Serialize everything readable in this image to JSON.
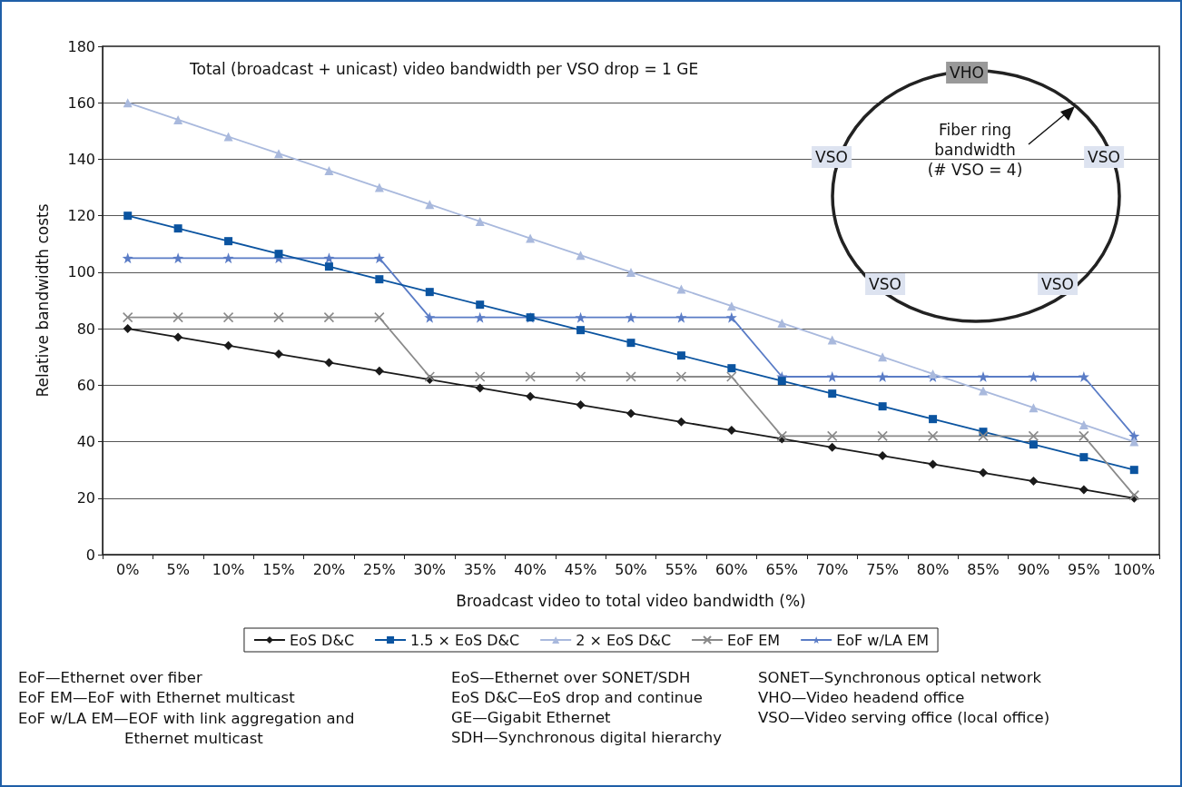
{
  "chart_data": {
    "type": "line",
    "xlabel": "Broadcast video to total video bandwidth (%)",
    "ylabel": "Relative bandwidth costs",
    "categories": [
      "0%",
      "5%",
      "10%",
      "15%",
      "20%",
      "25%",
      "30%",
      "35%",
      "40%",
      "45%",
      "50%",
      "55%",
      "60%",
      "65%",
      "70%",
      "75%",
      "80%",
      "85%",
      "90%",
      "95%",
      "100%"
    ],
    "series": [
      {
        "name": "EoS D&C",
        "color": "#1a1a1a",
        "marker": "diamond",
        "values": [
          80,
          77,
          74,
          71,
          68,
          65,
          62,
          59,
          56,
          53,
          50,
          47,
          44,
          41,
          38,
          35,
          32,
          29,
          26,
          23,
          20
        ]
      },
      {
        "name": "1.5 × EoS D&C",
        "color": "#0b54a0",
        "marker": "square",
        "values": [
          120,
          115.5,
          111,
          106.5,
          102,
          97.5,
          93,
          88.5,
          84,
          79.5,
          75,
          70.5,
          66,
          61.5,
          57,
          52.5,
          48,
          43.5,
          39,
          34.5,
          30
        ]
      },
      {
        "name": "2 × EoS D&C",
        "color": "#a9b9dd",
        "marker": "triangle",
        "values": [
          160,
          154,
          148,
          142,
          136,
          130,
          124,
          118,
          112,
          106,
          100,
          94,
          88,
          82,
          76,
          70,
          64,
          58,
          52,
          46,
          40
        ]
      },
      {
        "name": "EoF EM",
        "color": "#8a8a8a",
        "marker": "cross",
        "values": [
          84,
          84,
          84,
          84,
          84,
          84,
          63,
          63,
          63,
          63,
          63,
          63,
          63,
          42,
          42,
          42,
          42,
          42,
          42,
          42,
          21
        ]
      },
      {
        "name": "EoF w/LA EM",
        "color": "#5a7cc6",
        "marker": "star",
        "values": [
          105,
          105,
          105,
          105,
          105,
          105,
          84,
          84,
          84,
          84,
          84,
          84,
          84,
          63,
          63,
          63,
          63,
          63,
          63,
          63,
          42
        ]
      }
    ],
    "ylim": [
      0,
      180
    ],
    "yticks": [
      0,
      20,
      40,
      60,
      80,
      100,
      120,
      140,
      160,
      180
    ],
    "grid": "y",
    "legend": "bottom",
    "annotations": [
      "Total (broadcast + unicast) video bandwidth per VSO drop = 1 GE",
      "VHO",
      "VSO",
      "VSO",
      "VSO",
      "VSO",
      "Fiber ring bandwidth (# VSO = 4)",
      "EoF—Ethernet over fiber",
      "EoF EM—EoF with Ethernet multicast",
      "EoF w/LA EM—EOF with link aggregation and Ethernet multicast",
      "EoS—Ethernet over SONET/SDH",
      "EoS D&C—EoS drop and continue",
      "GE—Gigabit Ethernet",
      "SDH—Synchronous digital hierarchy",
      "SONET—Synchronous optical network",
      "VHO—Video headend office",
      "VSO—Video serving office (local office)"
    ]
  }
}
